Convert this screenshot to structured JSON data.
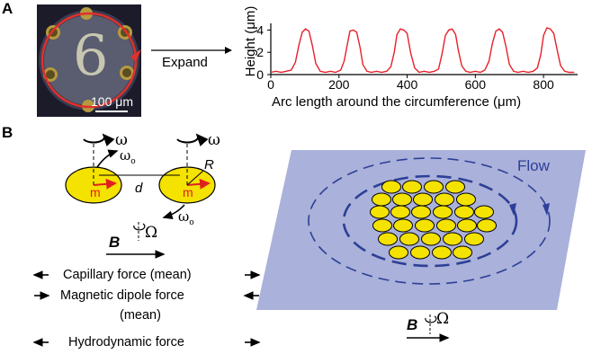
{
  "panel_a": {
    "label": "A",
    "photo": {
      "digit": "6",
      "scale_bar": "100 μm"
    },
    "expand_label": "Expand",
    "chart_data": {
      "type": "line",
      "xlabel": "Arc length around the circumference (μm)",
      "ylabel": "Height (μm)",
      "xlim": [
        0,
        900
      ],
      "ylim": [
        0,
        4.6
      ],
      "xticks": [
        0,
        200,
        400,
        600,
        800
      ],
      "yticks": [
        0,
        2,
        4
      ],
      "grid": false,
      "series": [
        {
          "color": "#e8202a",
          "x": [
            0,
            15,
            30,
            45,
            60,
            72,
            82,
            92,
            102,
            112,
            122,
            132,
            145,
            160,
            175,
            190,
            205,
            215,
            225,
            232,
            242,
            252,
            262,
            270,
            282,
            295,
            310,
            325,
            340,
            352,
            362,
            370,
            380,
            390,
            400,
            410,
            422,
            435,
            450,
            465,
            480,
            492,
            502,
            512,
            522,
            532,
            542,
            550,
            560,
            572,
            585,
            600,
            615,
            628,
            640,
            650,
            660,
            670,
            680,
            690,
            700,
            712,
            725,
            740,
            755,
            770,
            782,
            792,
            800,
            810,
            820,
            830,
            840,
            850,
            862,
            875,
            890
          ],
          "y": [
            0.2,
            0.3,
            0.2,
            0.3,
            0.4,
            1.1,
            2.6,
            3.8,
            4.1,
            3.9,
            2.6,
            1.0,
            0.3,
            0.2,
            0.3,
            0.2,
            0.4,
            1.2,
            2.8,
            3.9,
            4.0,
            3.8,
            2.4,
            0.9,
            0.3,
            0.2,
            0.3,
            0.2,
            0.3,
            0.7,
            2.0,
            3.6,
            4.1,
            4.0,
            3.7,
            2.0,
            0.6,
            0.2,
            0.3,
            0.2,
            0.3,
            0.5,
            1.8,
            3.5,
            4.0,
            4.1,
            3.6,
            2.2,
            0.8,
            0.3,
            0.2,
            0.3,
            0.2,
            0.4,
            1.2,
            2.8,
            3.9,
            4.1,
            3.8,
            2.5,
            0.9,
            0.3,
            0.2,
            0.3,
            0.2,
            0.3,
            0.6,
            1.8,
            3.5,
            4.2,
            4.1,
            3.7,
            2.2,
            0.8,
            0.3,
            0.2,
            0.2
          ]
        }
      ]
    }
  },
  "panel_b": {
    "label": "B",
    "omega": "ω",
    "omega_o": "ω",
    "omega_o_sub": "o",
    "R": "R",
    "d": "d",
    "m": "m",
    "B": "B",
    "Omega": "Ω",
    "forces": {
      "capillary": "Capillary force (mean)",
      "magnetic_line1": "Magnetic dipole force",
      "magnetic_line2": "(mean)",
      "hydrodynamic": "Hydrodynamic force"
    },
    "flow": "Flow",
    "colors": {
      "disk": "#f4e200",
      "red": "#e02020",
      "flow_plane": "#aab1da",
      "flow_lines": "#2d3f96"
    }
  }
}
